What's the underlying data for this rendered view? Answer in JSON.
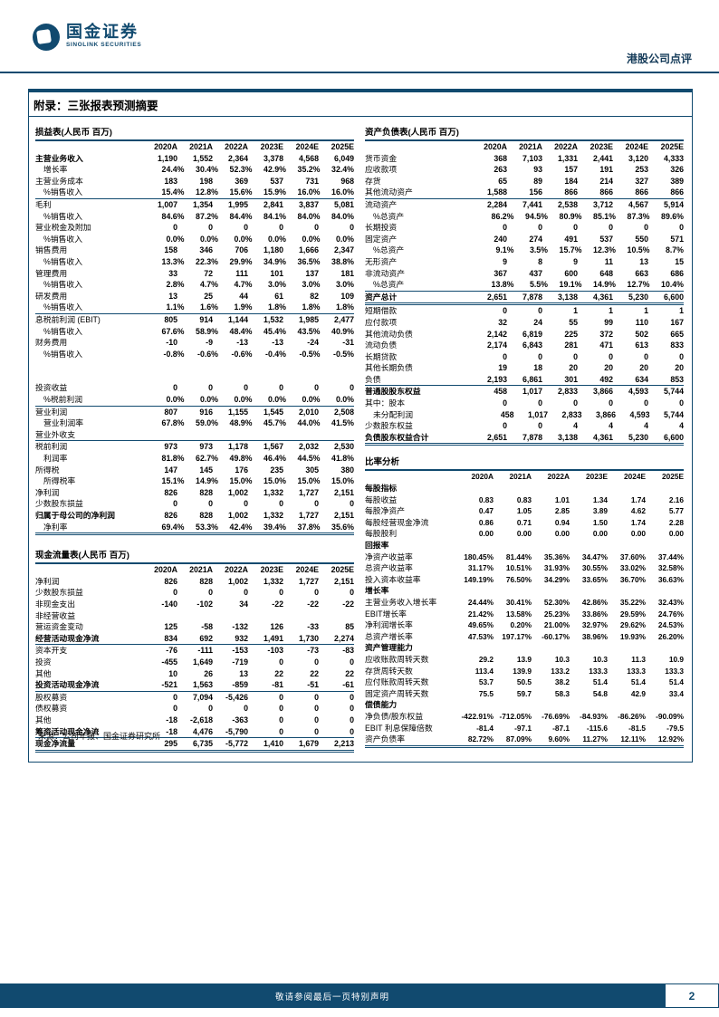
{
  "header": {
    "brand_cn": "国金证券",
    "brand_en": "SINOLINK SECURITIES",
    "doc_type": "港股公司点评"
  },
  "appendix_title": "附录：三张报表预测摘要",
  "years": [
    "2020A",
    "2021A",
    "2022A",
    "2023E",
    "2024E",
    "2025E"
  ],
  "tables": {
    "income": {
      "title": "损益表(人民币 百万)",
      "rows": [
        {
          "l": "主营业务收入",
          "v": [
            "1,190",
            "1,552",
            "2,364",
            "3,378",
            "4,568",
            "6,049"
          ],
          "b": 1
        },
        {
          "l": "增长率",
          "v": [
            "24.4%",
            "30.4%",
            "52.3%",
            "42.9%",
            "35.2%",
            "32.4%"
          ],
          "i": 1
        },
        {
          "l": "主营业务成本",
          "v": [
            "183",
            "198",
            "369",
            "537",
            "731",
            "968"
          ]
        },
        {
          "l": "%销售收入",
          "v": [
            "15.4%",
            "12.8%",
            "15.6%",
            "15.9%",
            "16.0%",
            "16.0%"
          ],
          "i": 1,
          "u": 1
        },
        {
          "l": "毛利",
          "v": [
            "1,007",
            "1,354",
            "1,995",
            "2,841",
            "3,837",
            "5,081"
          ]
        },
        {
          "l": "%销售收入",
          "v": [
            "84.6%",
            "87.2%",
            "84.4%",
            "84.1%",
            "84.0%",
            "84.0%"
          ],
          "i": 1
        },
        {
          "l": "营业税金及附加",
          "v": [
            "0",
            "0",
            "0",
            "0",
            "0",
            "0"
          ]
        },
        {
          "l": "%销售收入",
          "v": [
            "0.0%",
            "0.0%",
            "0.0%",
            "0.0%",
            "0.0%",
            "0.0%"
          ],
          "i": 1
        },
        {
          "l": "销售费用",
          "v": [
            "158",
            "346",
            "706",
            "1,180",
            "1,666",
            "2,347"
          ]
        },
        {
          "l": "%销售收入",
          "v": [
            "13.3%",
            "22.3%",
            "29.9%",
            "34.9%",
            "36.5%",
            "38.8%"
          ],
          "i": 1
        },
        {
          "l": "管理费用",
          "v": [
            "33",
            "72",
            "111",
            "101",
            "137",
            "181"
          ]
        },
        {
          "l": "%销售收入",
          "v": [
            "2.8%",
            "4.7%",
            "4.7%",
            "3.0%",
            "3.0%",
            "3.0%"
          ],
          "i": 1
        },
        {
          "l": "研发费用",
          "v": [
            "13",
            "25",
            "44",
            "61",
            "82",
            "109"
          ]
        },
        {
          "l": "%销售收入",
          "v": [
            "1.1%",
            "1.6%",
            "1.9%",
            "1.8%",
            "1.8%",
            "1.8%"
          ],
          "i": 1,
          "u": 1
        },
        {
          "l": "息税前利润 (EBIT)",
          "v": [
            "805",
            "914",
            "1,144",
            "1,532",
            "1,985",
            "2,477"
          ]
        },
        {
          "l": "%销售收入",
          "v": [
            "67.6%",
            "58.9%",
            "48.4%",
            "45.4%",
            "43.5%",
            "40.9%"
          ],
          "i": 1
        },
        {
          "l": "财务费用",
          "v": [
            "-10",
            "-9",
            "-13",
            "-13",
            "-24",
            "-31"
          ]
        },
        {
          "l": "%销售收入",
          "v": [
            "-0.8%",
            "-0.6%",
            "-0.6%",
            "-0.4%",
            "-0.5%",
            "-0.5%"
          ],
          "i": 1
        },
        {
          "l": "",
          "v": [
            "",
            "",
            "",
            "",
            "",
            ""
          ]
        },
        {
          "l": "",
          "v": [
            "",
            "",
            "",
            "",
            "",
            ""
          ]
        },
        {
          "l": "投资收益",
          "v": [
            "0",
            "0",
            "0",
            "0",
            "0",
            "0"
          ]
        },
        {
          "l": "%税前利润",
          "v": [
            "0.0%",
            "0.0%",
            "0.0%",
            "0.0%",
            "0.0%",
            "0.0%"
          ],
          "i": 1,
          "u": 1
        },
        {
          "l": "营业利润",
          "v": [
            "807",
            "916",
            "1,155",
            "1,545",
            "2,010",
            "2,508"
          ]
        },
        {
          "l": "营业利润率",
          "v": [
            "67.8%",
            "59.0%",
            "48.9%",
            "45.7%",
            "44.0%",
            "41.5%"
          ],
          "i": 1
        },
        {
          "l": "营业外收支",
          "v": [
            "",
            "",
            "",
            "",
            "",
            ""
          ],
          "u": 1
        },
        {
          "l": "税前利润",
          "v": [
            "973",
            "973",
            "1,178",
            "1,567",
            "2,032",
            "2,530"
          ]
        },
        {
          "l": "利润率",
          "v": [
            "81.8%",
            "62.7%",
            "49.8%",
            "46.4%",
            "44.5%",
            "41.8%"
          ],
          "i": 1
        },
        {
          "l": "所得税",
          "v": [
            "147",
            "145",
            "176",
            "235",
            "305",
            "380"
          ]
        },
        {
          "l": "所得税率",
          "v": [
            "15.1%",
            "14.9%",
            "15.0%",
            "15.0%",
            "15.0%",
            "15.0%"
          ],
          "i": 1
        },
        {
          "l": "净利润",
          "v": [
            "826",
            "828",
            "1,002",
            "1,332",
            "1,727",
            "2,151"
          ]
        },
        {
          "l": "少数股东损益",
          "v": [
            "0",
            "0",
            "0",
            "0",
            "0",
            "0"
          ]
        },
        {
          "l": "归属于母公司的净利润",
          "v": [
            "826",
            "828",
            "1,002",
            "1,332",
            "1,727",
            "2,151"
          ],
          "b": 1
        },
        {
          "l": "净利率",
          "v": [
            "69.4%",
            "53.3%",
            "42.4%",
            "39.4%",
            "37.8%",
            "35.6%"
          ],
          "i": 1,
          "d": 1
        }
      ]
    },
    "cashflow": {
      "title": "现金流量表(人民币 百万)",
      "rows": [
        {
          "l": "净利润",
          "v": [
            "826",
            "828",
            "1,002",
            "1,332",
            "1,727",
            "2,151"
          ]
        },
        {
          "l": "少数股东损益",
          "v": [
            "0",
            "0",
            "0",
            "0",
            "0",
            "0"
          ]
        },
        {
          "l": "非现金支出",
          "v": [
            "-140",
            "-102",
            "34",
            "-22",
            "-22",
            "-22"
          ]
        },
        {
          "l": "非经营收益",
          "v": [
            "",
            "",
            "",
            "",
            "",
            ""
          ]
        },
        {
          "l": "营运资金变动",
          "v": [
            "125",
            "-58",
            "-132",
            "126",
            "-33",
            "85"
          ]
        },
        {
          "l": "经营活动现金净流",
          "v": [
            "834",
            "692",
            "932",
            "1,491",
            "1,730",
            "2,274"
          ],
          "b": 1,
          "u": 1
        },
        {
          "l": "资本开支",
          "v": [
            "-76",
            "-111",
            "-153",
            "-103",
            "-73",
            "-83"
          ]
        },
        {
          "l": "投资",
          "v": [
            "-455",
            "1,649",
            "-719",
            "0",
            "0",
            "0"
          ]
        },
        {
          "l": "其他",
          "v": [
            "10",
            "26",
            "13",
            "22",
            "22",
            "22"
          ]
        },
        {
          "l": "投资活动现金净流",
          "v": [
            "-521",
            "1,563",
            "-859",
            "-81",
            "-51",
            "-61"
          ],
          "b": 1,
          "u": 1
        },
        {
          "l": "股权募资",
          "v": [
            "0",
            "7,094",
            "-5,426",
            "0",
            "0",
            "0"
          ]
        },
        {
          "l": "债权募资",
          "v": [
            "0",
            "0",
            "0",
            "0",
            "0",
            "0"
          ]
        },
        {
          "l": "其他",
          "v": [
            "-18",
            "-2,618",
            "-363",
            "0",
            "0",
            "0"
          ]
        },
        {
          "l": "筹资活动现金净流",
          "v": [
            "-18",
            "4,476",
            "-5,790",
            "0",
            "0",
            "0"
          ],
          "b": 1,
          "u": 1
        },
        {
          "l": "现金净流量",
          "v": [
            "295",
            "6,735",
            "-5,772",
            "1,410",
            "1,679",
            "2,213"
          ],
          "b": 1,
          "d": 1
        }
      ]
    },
    "balance": {
      "title": "资产负债表(人民币 百万)",
      "rows": [
        {
          "l": "货币资金",
          "v": [
            "368",
            "7,103",
            "1,331",
            "2,441",
            "3,120",
            "4,333"
          ]
        },
        {
          "l": "应收款项",
          "v": [
            "263",
            "93",
            "157",
            "191",
            "253",
            "326"
          ]
        },
        {
          "l": "存货",
          "v": [
            "65",
            "89",
            "184",
            "214",
            "327",
            "389"
          ]
        },
        {
          "l": "其他流动资产",
          "v": [
            "1,588",
            "156",
            "866",
            "866",
            "866",
            "866"
          ],
          "u": 1
        },
        {
          "l": "流动资产",
          "v": [
            "2,284",
            "7,441",
            "2,538",
            "3,712",
            "4,567",
            "5,914"
          ]
        },
        {
          "l": "%总资产",
          "v": [
            "86.2%",
            "94.5%",
            "80.9%",
            "85.1%",
            "87.3%",
            "89.6%"
          ],
          "i": 1
        },
        {
          "l": "长期投资",
          "v": [
            "0",
            "0",
            "0",
            "0",
            "0",
            "0"
          ]
        },
        {
          "l": "固定资产",
          "v": [
            "240",
            "274",
            "491",
            "537",
            "550",
            "571"
          ]
        },
        {
          "l": "%总资产",
          "v": [
            "9.1%",
            "3.5%",
            "15.7%",
            "12.3%",
            "10.5%",
            "8.7%"
          ],
          "i": 1
        },
        {
          "l": "无形资产",
          "v": [
            "9",
            "8",
            "9",
            "11",
            "13",
            "15"
          ]
        },
        {
          "l": "非流动资产",
          "v": [
            "367",
            "437",
            "600",
            "648",
            "663",
            "686"
          ]
        },
        {
          "l": "%总资产",
          "v": [
            "13.8%",
            "5.5%",
            "19.1%",
            "14.9%",
            "12.7%",
            "10.4%"
          ],
          "i": 1,
          "u": 1
        },
        {
          "l": "资产总计",
          "v": [
            "2,651",
            "7,878",
            "3,138",
            "4,361",
            "5,230",
            "6,600"
          ],
          "b": 1,
          "d": 1
        },
        {
          "l": "短期借款",
          "v": [
            "0",
            "0",
            "1",
            "1",
            "1",
            "1"
          ]
        },
        {
          "l": "应付款项",
          "v": [
            "32",
            "24",
            "55",
            "99",
            "110",
            "167"
          ]
        },
        {
          "l": "其他流动负债",
          "v": [
            "2,142",
            "6,819",
            "225",
            "372",
            "502",
            "665"
          ]
        },
        {
          "l": "流动负债",
          "v": [
            "2,174",
            "6,843",
            "281",
            "471",
            "613",
            "833"
          ]
        },
        {
          "l": "长期贷款",
          "v": [
            "0",
            "0",
            "0",
            "0",
            "0",
            "0"
          ]
        },
        {
          "l": "其他长期负债",
          "v": [
            "19",
            "18",
            "20",
            "20",
            "20",
            "20"
          ]
        },
        {
          "l": "负债",
          "v": [
            "2,193",
            "6,861",
            "301",
            "492",
            "634",
            "853"
          ],
          "u": 1
        },
        {
          "l": "普通股股东权益",
          "v": [
            "458",
            "1,017",
            "2,833",
            "3,866",
            "4,593",
            "5,744"
          ],
          "b": 1
        },
        {
          "l": "其中：股本",
          "v": [
            "0",
            "0",
            "0",
            "0",
            "0",
            "0"
          ]
        },
        {
          "l": "未分配利润",
          "v": [
            "458",
            "1,017",
            "2,833",
            "3,866",
            "4,593",
            "5,744"
          ],
          "i": 1
        },
        {
          "l": "少数股东权益",
          "v": [
            "0",
            "0",
            "4",
            "4",
            "4",
            "4"
          ]
        },
        {
          "l": "负债股东权益合计",
          "v": [
            "2,651",
            "7,878",
            "3,138",
            "4,361",
            "5,230",
            "6,600"
          ],
          "b": 1,
          "d": 1
        }
      ]
    },
    "ratios": {
      "title": "比率分析",
      "rows": [
        {
          "l": "每股指标",
          "s": 1
        },
        {
          "l": "每股收益",
          "v": [
            "0.83",
            "0.83",
            "1.01",
            "1.34",
            "1.74",
            "2.16"
          ]
        },
        {
          "l": "每股净资产",
          "v": [
            "0.47",
            "1.05",
            "2.85",
            "3.89",
            "4.62",
            "5.77"
          ]
        },
        {
          "l": "每股经营现金净流",
          "v": [
            "0.86",
            "0.71",
            "0.94",
            "1.50",
            "1.74",
            "2.28"
          ]
        },
        {
          "l": "每股股利",
          "v": [
            "0.00",
            "0.00",
            "0.00",
            "0.00",
            "0.00",
            "0.00"
          ]
        },
        {
          "l": "回报率",
          "s": 1
        },
        {
          "l": "净资产收益率",
          "v": [
            "180.45%",
            "81.44%",
            "35.36%",
            "34.47%",
            "37.60%",
            "37.44%"
          ]
        },
        {
          "l": "总资产收益率",
          "v": [
            "31.17%",
            "10.51%",
            "31.93%",
            "30.55%",
            "33.02%",
            "32.58%"
          ]
        },
        {
          "l": "投入资本收益率",
          "v": [
            "149.19%",
            "76.50%",
            "34.29%",
            "33.65%",
            "36.70%",
            "36.63%"
          ]
        },
        {
          "l": "增长率",
          "s": 1
        },
        {
          "l": "主营业务收入增长率",
          "v": [
            "24.44%",
            "30.41%",
            "52.30%",
            "42.86%",
            "35.22%",
            "32.43%"
          ]
        },
        {
          "l": "EBIT增长率",
          "v": [
            "21.42%",
            "13.58%",
            "25.23%",
            "33.86%",
            "29.59%",
            "24.76%"
          ]
        },
        {
          "l": "净利润增长率",
          "v": [
            "49.65%",
            "0.20%",
            "21.00%",
            "32.97%",
            "29.62%",
            "24.53%"
          ]
        },
        {
          "l": "总资产增长率",
          "v": [
            "47.53%",
            "197.17%",
            "-60.17%",
            "38.96%",
            "19.93%",
            "26.20%"
          ]
        },
        {
          "l": "资产管理能力",
          "s": 1
        },
        {
          "l": "应收账款周转天数",
          "v": [
            "29.2",
            "13.9",
            "10.3",
            "10.3",
            "11.3",
            "10.9"
          ]
        },
        {
          "l": "存货周转天数",
          "v": [
            "113.4",
            "139.9",
            "133.2",
            "133.3",
            "133.3",
            "133.3"
          ]
        },
        {
          "l": "应付账款周转天数",
          "v": [
            "53.7",
            "50.5",
            "38.2",
            "51.4",
            "51.4",
            "51.4"
          ]
        },
        {
          "l": "固定资产周转天数",
          "v": [
            "75.5",
            "59.7",
            "58.3",
            "54.8",
            "42.9",
            "33.4"
          ]
        },
        {
          "l": "偿债能力",
          "s": 1
        },
        {
          "l": "净负债/股东权益",
          "v": [
            "-422.91%",
            "-712.05%",
            "-76.69%",
            "-84.93%",
            "-86.26%",
            "-90.09%"
          ]
        },
        {
          "l": "EBIT 利息保障倍数",
          "v": [
            "-81.4",
            "-97.1",
            "-87.1",
            "-115.6",
            "-81.5",
            "-79.5"
          ]
        },
        {
          "l": "资产负债率",
          "v": [
            "82.72%",
            "87.09%",
            "9.60%",
            "11.27%",
            "12.11%",
            "12.92%"
          ],
          "d": 1
        }
      ]
    }
  },
  "source_note": "来源：公司年报、国金证券研究所",
  "footer": {
    "disclaimer": "敬请参阅最后一页特别声明",
    "page_number": "2"
  },
  "colors": {
    "accent_navy": "#114a6f",
    "text": "#000000",
    "footer_text": "#ffffff"
  }
}
